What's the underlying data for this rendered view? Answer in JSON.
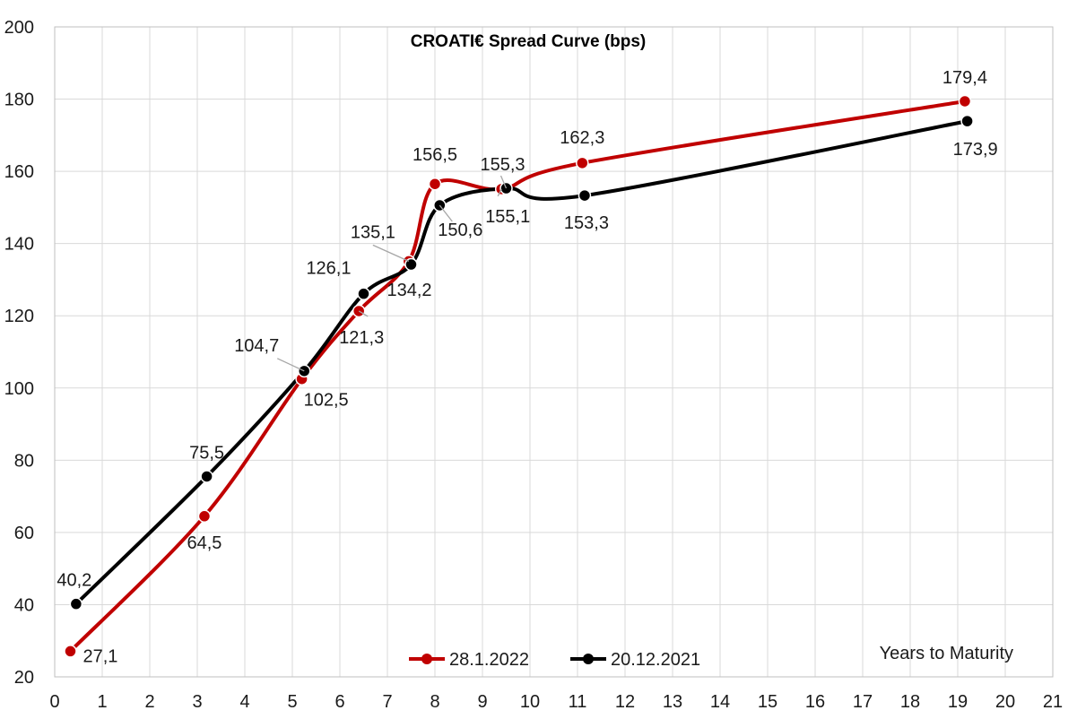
{
  "chart_data": {
    "type": "line",
    "title": "CROATI€ Spread Curve (bps)",
    "xlabel": "Years to Maturity",
    "ylabel": "",
    "xlim": [
      0,
      21
    ],
    "ylim": [
      20,
      200
    ],
    "x_ticks": [
      0,
      1,
      2,
      3,
      4,
      5,
      6,
      7,
      8,
      9,
      10,
      11,
      12,
      13,
      14,
      15,
      16,
      17,
      18,
      19,
      20,
      21
    ],
    "y_ticks": [
      20,
      40,
      60,
      80,
      100,
      120,
      140,
      160,
      180,
      200
    ],
    "grid": true,
    "smoothed": true,
    "legend_position": "bottom-center",
    "series": [
      {
        "name": "28.1.2022",
        "color": "#c00000",
        "x": [
          0.33,
          3.15,
          5.2,
          6.4,
          7.45,
          8.0,
          9.4,
          11.1,
          19.15
        ],
        "y": [
          27.1,
          64.5,
          102.5,
          121.3,
          135.1,
          156.5,
          155.1,
          162.3,
          179.4
        ],
        "labels": [
          "27,1",
          "64,5",
          "102,5",
          "121,3",
          "135,1",
          "156,5",
          "155,1",
          "162,3",
          "179,4"
        ]
      },
      {
        "name": "20.12.2021",
        "color": "#000000",
        "x": [
          0.45,
          3.2,
          5.25,
          6.5,
          7.5,
          8.1,
          9.5,
          11.15,
          19.2
        ],
        "y": [
          40.2,
          75.5,
          104.7,
          126.1,
          134.2,
          150.6,
          155.3,
          153.3,
          173.9
        ],
        "labels": [
          "40,2",
          "75,5",
          "104,7",
          "126,1",
          "134,2",
          "150,6",
          "155,3",
          "153,3",
          "173,9"
        ]
      }
    ]
  }
}
